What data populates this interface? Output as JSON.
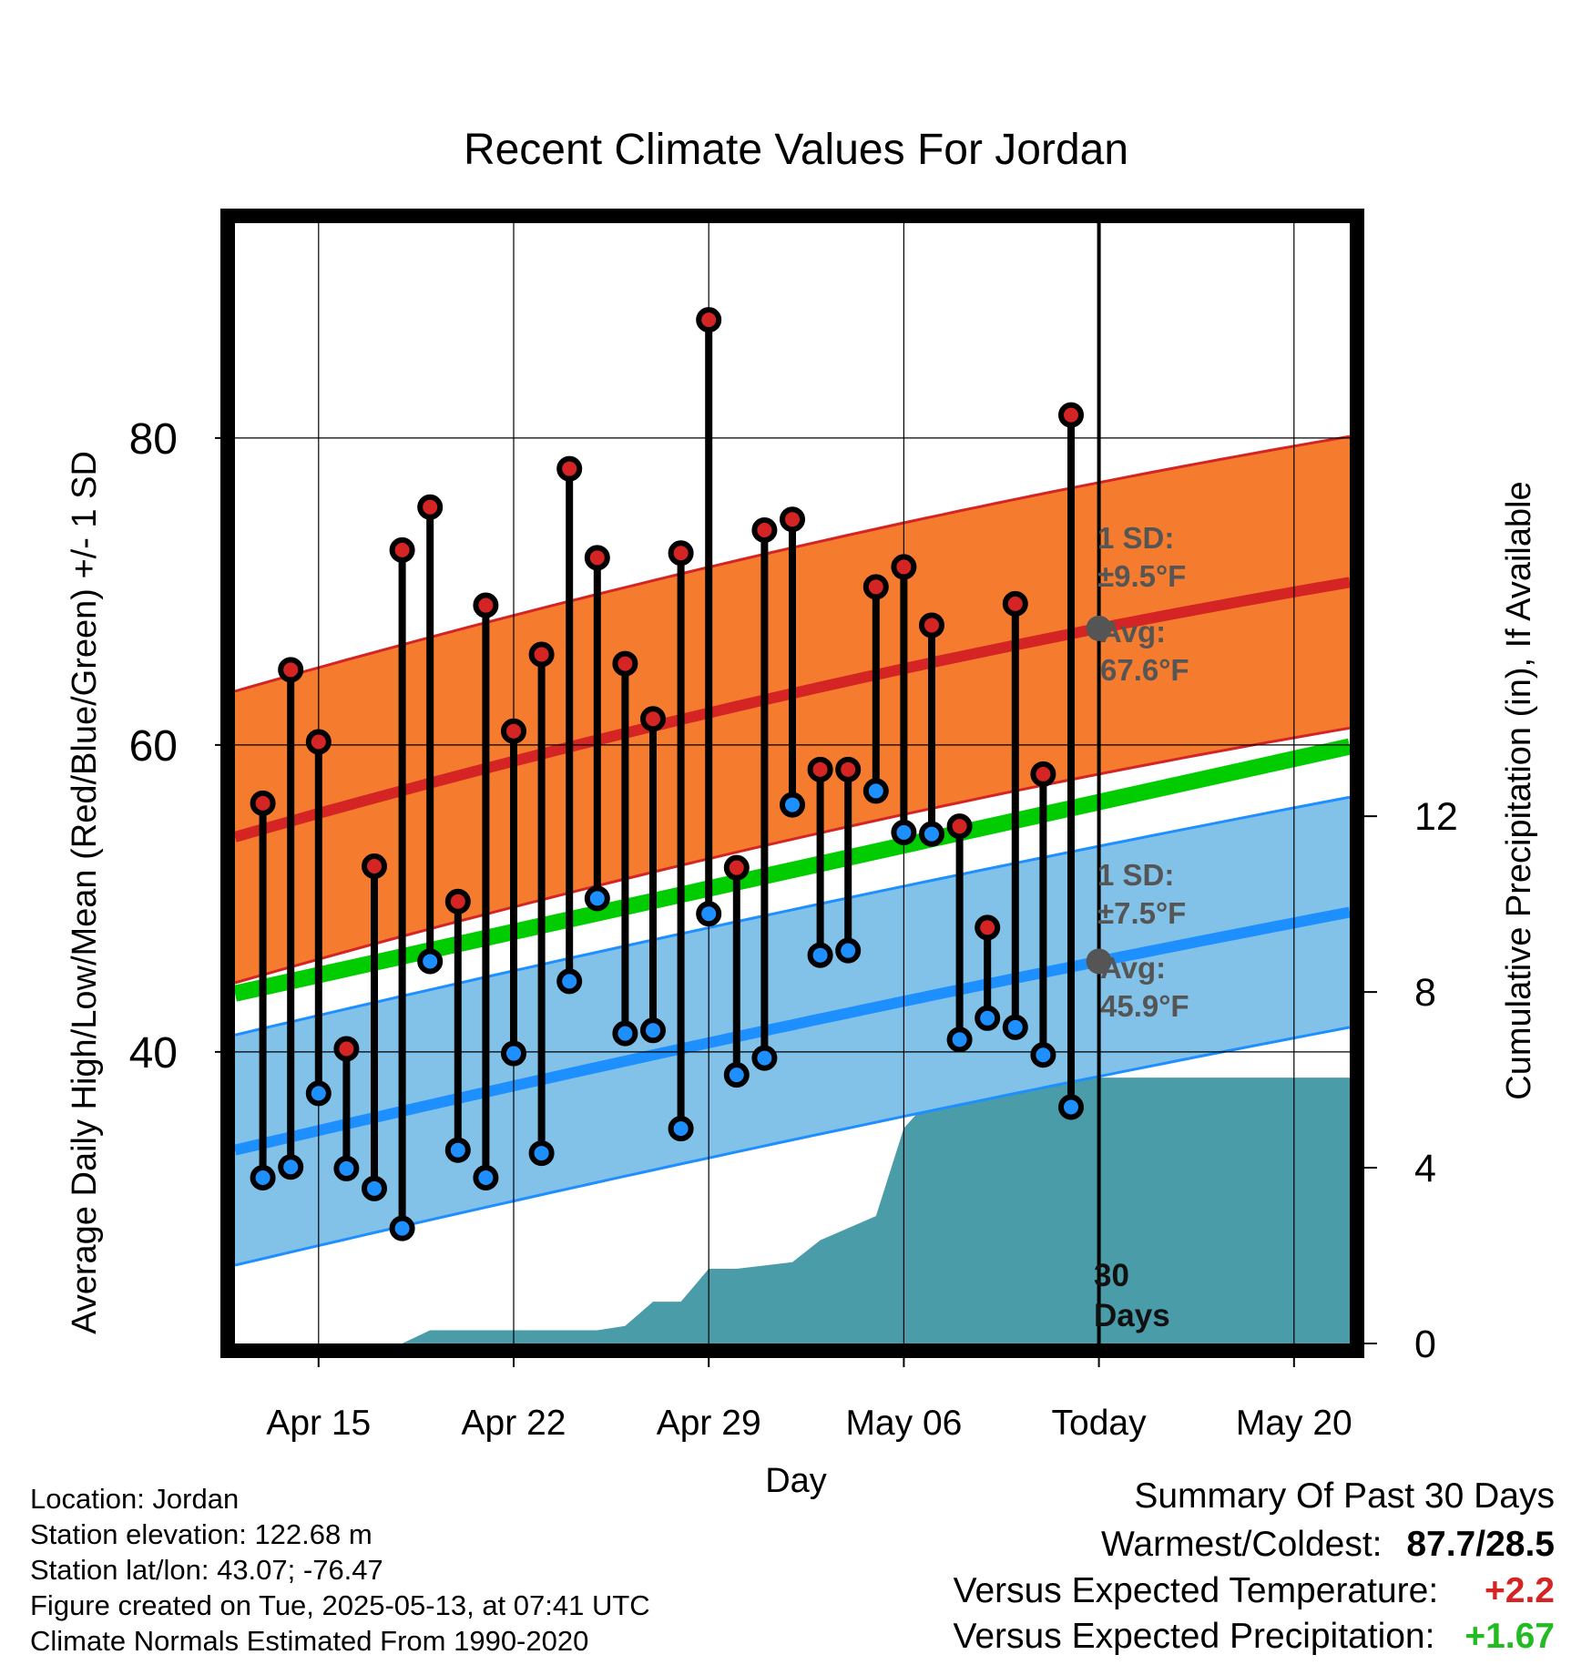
{
  "chart_data": {
    "type": "line",
    "title": "Recent Climate Values For Jordan",
    "xlabel": "Day",
    "ylabel_left": "Average Daily High/Low/Mean (Red/Blue/Green) +/- 1 SD",
    "ylabel_right": "Cumulative Precipitation (in), If Available",
    "x_tick_labels": [
      "Apr 15",
      "Apr 22",
      "Apr 29",
      "May 06",
      "Today",
      "May 20"
    ],
    "x_tick_dates": [
      "2025-04-15",
      "2025-04-22",
      "2025-04-29",
      "2025-05-06",
      "2025-05-13",
      "2025-05-20"
    ],
    "x_range": [
      "2025-04-12",
      "2025-05-22"
    ],
    "today": "2025-05-13",
    "y_left_ticks": [
      40,
      60,
      80
    ],
    "y_left_range": [
      21,
      94
    ],
    "y_right_ticks": [
      0,
      4,
      8,
      12
    ],
    "y_right_range": [
      0,
      25.5
    ],
    "grid": true,
    "days": [
      "2025-04-13",
      "2025-04-14",
      "2025-04-15",
      "2025-04-16",
      "2025-04-17",
      "2025-04-18",
      "2025-04-19",
      "2025-04-20",
      "2025-04-21",
      "2025-04-22",
      "2025-04-23",
      "2025-04-24",
      "2025-04-25",
      "2025-04-26",
      "2025-04-27",
      "2025-04-28",
      "2025-04-29",
      "2025-04-30",
      "2025-05-01",
      "2025-05-02",
      "2025-05-03",
      "2025-05-04",
      "2025-05-05",
      "2025-05-06",
      "2025-05-07",
      "2025-05-08",
      "2025-05-09",
      "2025-05-10",
      "2025-05-11",
      "2025-05-12"
    ],
    "series": [
      {
        "name": "High",
        "color": "#d02020",
        "values": [
          56.2,
          64.9,
          60.2,
          40.2,
          52.1,
          72.7,
          75.5,
          49.8,
          69.1,
          60.9,
          65.9,
          78.0,
          72.2,
          65.3,
          61.7,
          72.5,
          87.7,
          52.0,
          74.0,
          74.7,
          58.4,
          58.4,
          70.3,
          71.6,
          67.8,
          54.7,
          48.1,
          69.2,
          58.1,
          81.5
        ]
      },
      {
        "name": "Low",
        "color": "#1e90ff",
        "values": [
          31.8,
          32.5,
          37.3,
          32.4,
          31.1,
          28.5,
          45.9,
          33.6,
          31.8,
          39.9,
          33.4,
          44.6,
          50.0,
          41.2,
          41.4,
          35.0,
          49.0,
          38.5,
          39.6,
          56.1,
          46.3,
          46.6,
          57.0,
          54.3,
          54.2,
          40.8,
          42.2,
          41.6,
          39.8,
          36.4
        ]
      }
    ],
    "normals": {
      "high_avg": {
        "start": 54.0,
        "today": 67.6,
        "end": 70.6,
        "sd": 9.5
      },
      "low_avg": {
        "start": 33.6,
        "today": 45.9,
        "end": 49.1,
        "sd": 7.5
      },
      "mean_avg": {
        "start": 43.8,
        "end": 59.9
      }
    },
    "annotations": {
      "high_sd": "1 SD:",
      "high_sd_val": "±9.5°F",
      "high_avg": "Avg:",
      "high_avg_val": "67.6°F",
      "low_sd": "1 SD:",
      "low_sd_val": "±7.5°F",
      "low_avg": "Avg:",
      "low_avg_val": "45.9°F",
      "days_label_1": "30",
      "days_label_2": "Days"
    },
    "precip_cumulative": {
      "dates": [
        "2025-04-18",
        "2025-04-19",
        "2025-04-25",
        "2025-04-26",
        "2025-04-27",
        "2025-04-28",
        "2025-04-29",
        "2025-04-30",
        "2025-05-02",
        "2025-05-03",
        "2025-05-05",
        "2025-05-06",
        "2025-05-07",
        "2025-05-08",
        "2025-05-09",
        "2025-05-22"
      ],
      "values": [
        0.0,
        0.3,
        0.3,
        0.4,
        0.95,
        0.95,
        1.7,
        1.7,
        1.85,
        2.35,
        2.9,
        4.9,
        5.6,
        5.6,
        6.05,
        6.05
      ]
    },
    "colors": {
      "high_band": "#f57c2e",
      "high_line": "#d42424",
      "low_band": "#82c1e8",
      "low_line": "#1e8fff",
      "mean_line": "#00cc00",
      "precip_fill": "#4a9ca8"
    }
  },
  "footer": {
    "location": "Location: Jordan",
    "elevation": "Station elevation: 122.68 m",
    "latlon": "Station lat/lon: 43.07; -76.47",
    "created": "Figure created on Tue, 2025-05-13, at 07:41 UTC",
    "normals": "Climate Normals Estimated From 1990-2020"
  },
  "summary": {
    "title": "Summary Of Past 30 Days",
    "warm_cold_label": "Warmest/Coldest:",
    "warm_cold_value": "87.7/28.5",
    "temp_label": "Versus Expected Temperature:",
    "temp_value": "+2.2",
    "temp_color": "#d42424",
    "precip_label": "Versus Expected Precipitation:",
    "precip_value": "+1.67",
    "precip_color": "#22bb22"
  }
}
